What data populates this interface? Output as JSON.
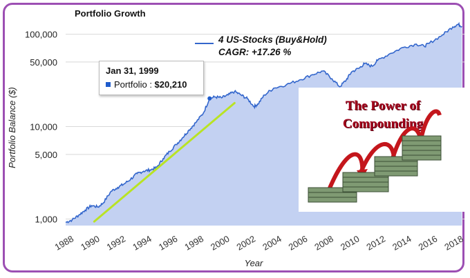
{
  "chart_data": {
    "type": "area",
    "title": "Portfolio Growth",
    "xlabel": "Year",
    "ylabel": "Portfolio Balance ($)",
    "yscale": "log",
    "ylim": [
      850,
      140000
    ],
    "xlim": [
      1988,
      2018.7
    ],
    "x_ticks": [
      "1988",
      "1990",
      "1992",
      "1994",
      "1996",
      "1998",
      "2000",
      "2002",
      "2004",
      "2006",
      "2008",
      "2010",
      "2012",
      "2014",
      "2016",
      "2018"
    ],
    "y_ticks": [
      {
        "value": 1000,
        "label": "1,000"
      },
      {
        "value": 5000,
        "label": "5,000"
      },
      {
        "value": 10000,
        "label": "10,000"
      },
      {
        "value": 50000,
        "label": "50,000"
      },
      {
        "value": 100000,
        "label": "100,000"
      }
    ],
    "series": [
      {
        "name": "4 US-Stocks (Buy&Hold)",
        "subtitle": "CAGR: +17.26 %",
        "color": "#3366cc",
        "fill": "#c3d1f2",
        "x": [
          1988.0,
          1988.5,
          1989.0,
          1989.5,
          1990.0,
          1990.5,
          1990.9,
          1991.5,
          1992.0,
          1992.5,
          1993.0,
          1993.5,
          1994.0,
          1994.5,
          1995.0,
          1995.5,
          1996.0,
          1996.5,
          1997.0,
          1997.5,
          1998.0,
          1998.6,
          1999.08,
          1999.5,
          2000.0,
          2000.5,
          2001.0,
          2001.5,
          2002.0,
          2002.5,
          2002.8,
          2003.3,
          2004.0,
          2005.0,
          2006.0,
          2007.0,
          2007.8,
          2008.5,
          2009.1,
          2009.6,
          2010.0,
          2010.6,
          2011.0,
          2011.6,
          2012.0,
          2013.0,
          2014.0,
          2015.0,
          2015.6,
          2016.0,
          2017.0,
          2017.8,
          2018.2,
          2018.5
        ],
        "y": [
          920,
          980,
          1100,
          1250,
          1400,
          1350,
          1500,
          2000,
          2200,
          2400,
          2700,
          3100,
          3300,
          3400,
          3600,
          4500,
          5400,
          6400,
          7600,
          9200,
          11000,
          14000,
          20210,
          21000,
          20500,
          22000,
          24000,
          22000,
          20000,
          16500,
          17500,
          22000,
          26000,
          28500,
          32000,
          36500,
          40000,
          33000,
          27000,
          32000,
          39000,
          43000,
          48000,
          45000,
          52000,
          62000,
          72000,
          78000,
          74000,
          80000,
          98000,
          120000,
          128000,
          122000
        ]
      }
    ],
    "trendline": {
      "color": "#b9e324",
      "x": [
        1990.2,
        2001.0
      ],
      "y": [
        940,
        18000
      ]
    },
    "tooltip": {
      "date": "Jan 31, 1999",
      "series": "Portfolio",
      "separator": " : ",
      "value": "$20,210"
    }
  },
  "promo": {
    "line1": "The Power of",
    "line2": "Compounding"
  }
}
